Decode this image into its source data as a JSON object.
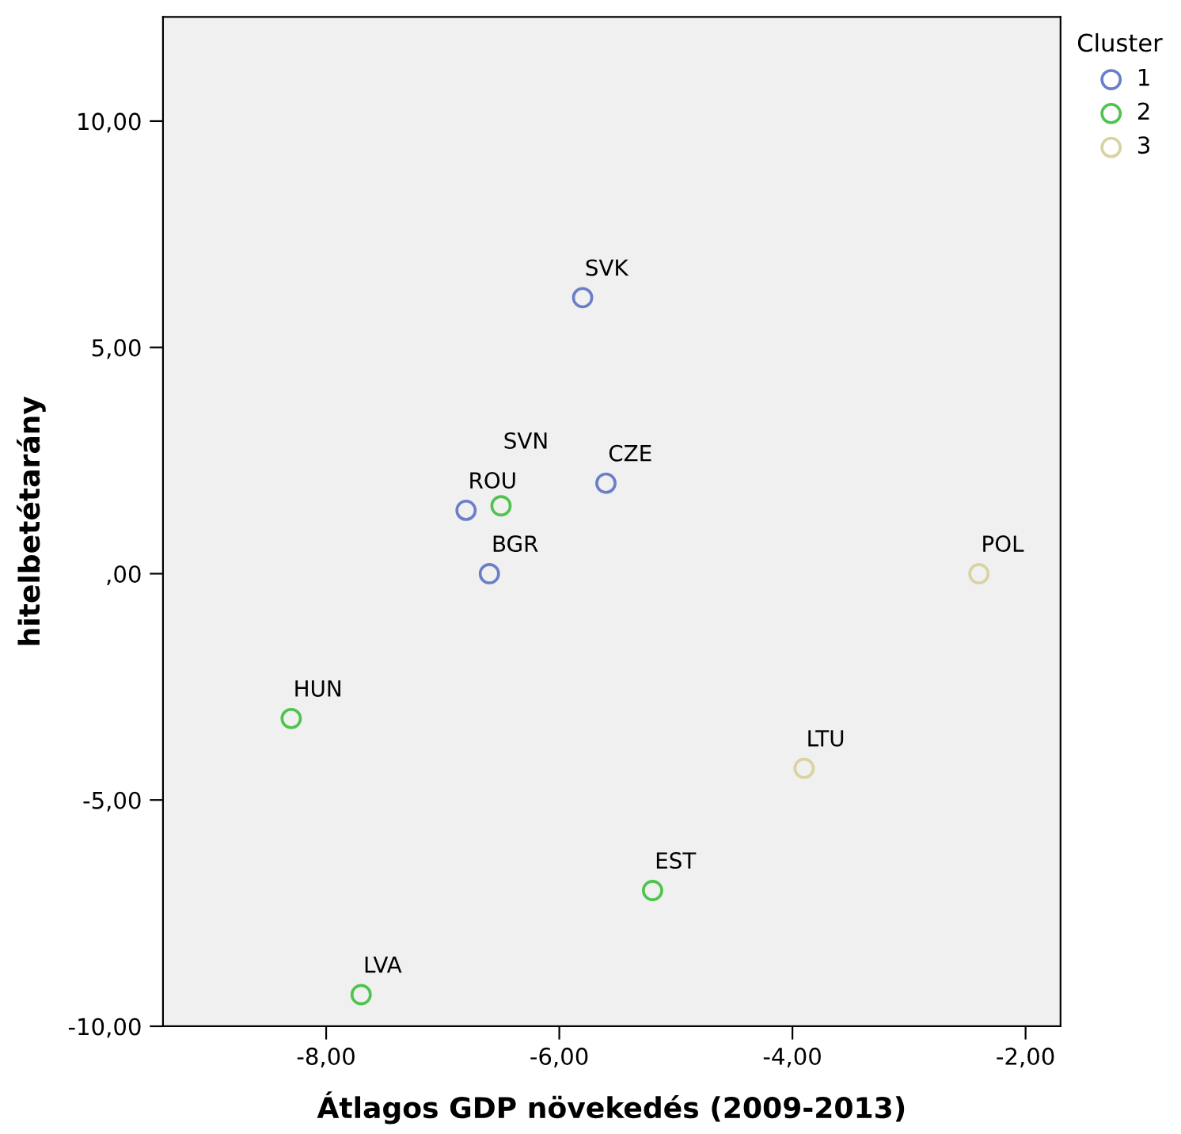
{
  "chart_data": {
    "type": "scatter",
    "xlabel": "Átlagos GDP növekedés (2009-2013)",
    "ylabel": "hitelbetétarány",
    "legend_title": "Cluster",
    "legend": "top right",
    "marker": "circle",
    "grid": false,
    "xlim": [
      -9.4,
      -1.7
    ],
    "ylim": [
      -10,
      12.3
    ],
    "xticks": [
      {
        "value": -8,
        "label": "-8,00"
      },
      {
        "value": -6,
        "label": "-6,00"
      },
      {
        "value": -4,
        "label": "-4,00"
      },
      {
        "value": -2,
        "label": "-2,00"
      }
    ],
    "yticks": [
      {
        "value": -10,
        "label": "-10,00"
      },
      {
        "value": -5,
        "label": "-5,00"
      },
      {
        "value": 0,
        "label": ",00"
      },
      {
        "value": 5,
        "label": "5,00"
      },
      {
        "value": 10,
        "label": "10,00"
      }
    ],
    "series": [
      {
        "name": "1",
        "color": "#6a7fc8",
        "x": [
          -5.8,
          -5.6,
          -6.8,
          -6.6
        ],
        "values": [
          6.1,
          2.0,
          1.4,
          0.0
        ]
      },
      {
        "name": "2",
        "color": "#4ec44e",
        "x": [
          -6.5,
          -8.3,
          -7.7,
          -5.2
        ],
        "values": [
          1.5,
          -3.2,
          -9.3,
          -7.0
        ]
      },
      {
        "name": "3",
        "color": "#d8d3a0",
        "x": [
          -3.9,
          -2.4
        ],
        "values": [
          -4.3,
          0.0
        ]
      }
    ],
    "annotations": [
      {
        "text": "SVK",
        "x": -5.8,
        "y": 6.1
      },
      {
        "text": "CZE",
        "x": -5.6,
        "y": 2.0
      },
      {
        "text": "ROU",
        "x": -6.8,
        "y": 1.4
      },
      {
        "text": "BGR",
        "x": -6.6,
        "y": 0.0
      },
      {
        "text": "SVN",
        "x": -6.5,
        "y": 1.5
      },
      {
        "text": "HUN",
        "x": -8.3,
        "y": -3.2
      },
      {
        "text": "LVA",
        "x": -7.7,
        "y": -9.3
      },
      {
        "text": "EST",
        "x": -5.2,
        "y": -7.0
      },
      {
        "text": "LTU",
        "x": -3.9,
        "y": -4.3
      },
      {
        "text": "POL",
        "x": -2.4,
        "y": 0.0
      }
    ]
  }
}
